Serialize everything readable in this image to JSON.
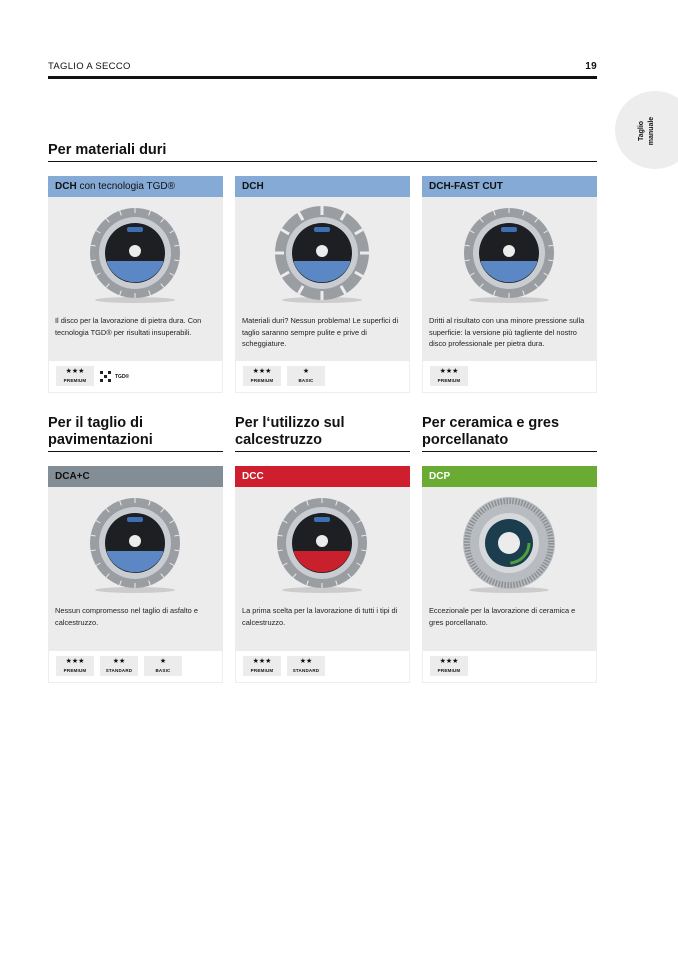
{
  "header": {
    "section": "TAGLIO A SECCO",
    "page": "19"
  },
  "side_tab": {
    "label_line1": "Taglio",
    "label_line2": "manuale"
  },
  "sections": [
    {
      "title": "Per materiali duri"
    },
    {
      "title_line1": "Per il taglio di",
      "title_line2": "pavimentazioni"
    },
    {
      "title_line1": "Per l‘utilizzo sul",
      "title_line2": "calcestruzzo"
    },
    {
      "title_line1": "Per ceramica e gres",
      "title_line2": "porcellanato"
    }
  ],
  "colors": {
    "blue": "#85aad6",
    "grey": "#838d96",
    "red": "#cf1f2e",
    "green": "#6aab34"
  },
  "cards": [
    {
      "name": "DCH",
      "suffix": " con tecnologia TGD®",
      "desc": "Il disco per la lavorazione di pietra dura. Con tecnologia TGD® per risultati insuperabili.",
      "badges": [
        {
          "stars": "★★★",
          "label": "PREMIUM"
        }
      ],
      "tgd": "TGD®",
      "disc": "segmented"
    },
    {
      "name": "DCH",
      "suffix": "",
      "desc": "Materiali duri? Nessun problema! Le superfici di taglio saranno sempre pulite e prive di scheggiature.",
      "badges": [
        {
          "stars": "★★★",
          "label": "PREMIUM"
        },
        {
          "stars": "★",
          "label": "BASIC"
        }
      ],
      "disc": "gapped"
    },
    {
      "name": "DCH-FAST CUT",
      "suffix": "",
      "desc": "Dritti al risultato con una minore pressione sulla superficie: la versione più tagliente del nostro disco professionale per pietra dura.",
      "badges": [
        {
          "stars": "★★★",
          "label": "PREMIUM"
        }
      ],
      "disc": "segmented"
    },
    {
      "name": "DCA+C",
      "suffix": "",
      "desc": "Nessun compromesso nel taglio di asfalto e calcestruzzo.",
      "badges": [
        {
          "stars": "★★★",
          "label": "PREMIUM"
        },
        {
          "stars": "★★",
          "label": "STANDARD"
        },
        {
          "stars": "★",
          "label": "BASIC"
        }
      ],
      "disc": "segmented"
    },
    {
      "name": "DCC",
      "suffix": "",
      "desc": "La prima scelta per la lavorazione di tutti i tipi di calcestruzzo.",
      "badges": [
        {
          "stars": "★★★",
          "label": "PREMIUM"
        },
        {
          "stars": "★★",
          "label": "STANDARD"
        }
      ],
      "disc": "segmented"
    },
    {
      "name": "DCP",
      "suffix": "",
      "desc": "Eccezionale per la lavorazione di ceramica e gres porcellanato.",
      "badges": [
        {
          "stars": "★★★",
          "label": "PREMIUM"
        }
      ],
      "disc": "turbo"
    }
  ]
}
